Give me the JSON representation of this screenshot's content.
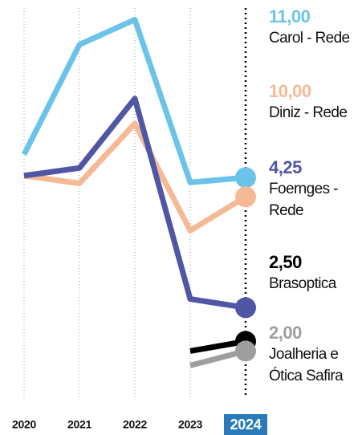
{
  "chart_data": {
    "type": "line",
    "categories": [
      "2020",
      "2021",
      "2022",
      "2023",
      "2024"
    ],
    "highlight_index": 4,
    "ylim": [
      -0.4,
      19.8
    ],
    "grid": true,
    "series": [
      {
        "name": "Carol - Rede",
        "color": "#6cc3ea",
        "values": [
          12.2,
          17.9,
          19.2,
          10.75,
          11
        ],
        "value_labels": [
          null,
          null,
          null,
          null,
          "11,00"
        ]
      },
      {
        "name": "Diniz - Rede",
        "color": "#f5b996",
        "values": [
          11.1,
          10.7,
          13.8,
          8.25,
          10
        ],
        "value_labels": [
          null,
          null,
          null,
          null,
          "10,00"
        ]
      },
      {
        "name": "Foernges - Rede",
        "color": "#4f56a6",
        "values": [
          11.1,
          11.5,
          15.1,
          4.7,
          4.25
        ],
        "value_labels": [
          null,
          null,
          null,
          null,
          "4,25"
        ]
      },
      {
        "name": "Brasoptica",
        "color": "#000000",
        "values": [
          null,
          null,
          null,
          2.0,
          2.5
        ],
        "value_labels": [
          null,
          null,
          null,
          null,
          "2,50"
        ]
      },
      {
        "name": "Joalheria e Ótica Safira",
        "color": "#9e9e9e",
        "values": [
          null,
          null,
          null,
          1.25,
          2.0
        ],
        "value_labels": [
          null,
          null,
          null,
          null,
          "2,00"
        ]
      }
    ]
  }
}
